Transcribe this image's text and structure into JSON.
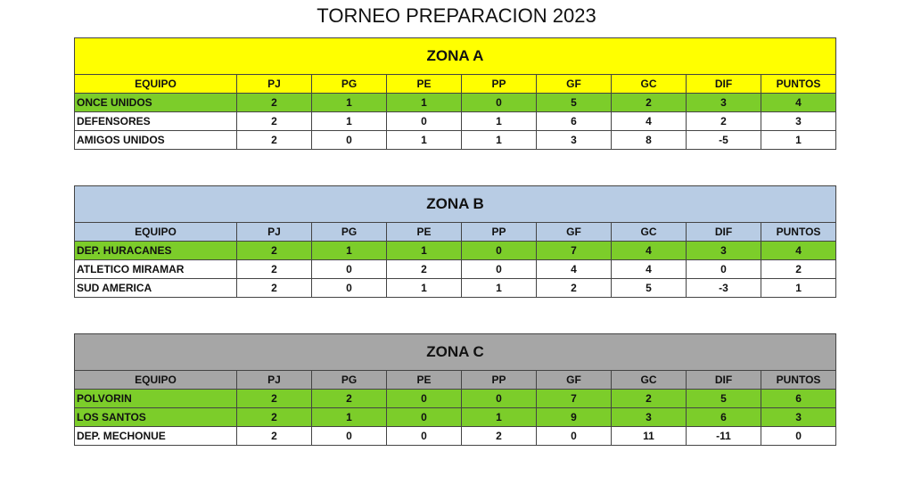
{
  "title": "TORNEO PREPARACION 2023",
  "columns": [
    "EQUIPO",
    "PJ",
    "PG",
    "PE",
    "PP",
    "GF",
    "GC",
    "DIF",
    "PUNTOS"
  ],
  "colors": {
    "zona_a": "#ffff00",
    "zona_b": "#b8cce4",
    "zona_c": "#a6a6a6",
    "highlight": "#7ccd2a"
  },
  "zones": [
    {
      "name": "ZONA A",
      "rows": [
        {
          "team": "ONCE UNIDOS",
          "v": [
            "2",
            "1",
            "1",
            "0",
            "5",
            "2",
            "3",
            "4"
          ],
          "highlight": true
        },
        {
          "team": "DEFENSORES",
          "v": [
            "2",
            "1",
            "0",
            "1",
            "6",
            "4",
            "2",
            "3"
          ],
          "highlight": false
        },
        {
          "team": "AMIGOS UNIDOS",
          "v": [
            "2",
            "0",
            "1",
            "1",
            "3",
            "8",
            "-5",
            "1"
          ],
          "highlight": false
        }
      ]
    },
    {
      "name": "ZONA B",
      "rows": [
        {
          "team": "DEP. HURACANES",
          "v": [
            "2",
            "1",
            "1",
            "0",
            "7",
            "4",
            "3",
            "4"
          ],
          "highlight": true
        },
        {
          "team": "ATLETICO MIRAMAR",
          "v": [
            "2",
            "0",
            "2",
            "0",
            "4",
            "4",
            "0",
            "2"
          ],
          "highlight": false
        },
        {
          "team": "SUD AMERICA",
          "v": [
            "2",
            "0",
            "1",
            "1",
            "2",
            "5",
            "-3",
            "1"
          ],
          "highlight": false
        }
      ]
    },
    {
      "name": "ZONA C",
      "rows": [
        {
          "team": "POLVORIN",
          "v": [
            "2",
            "2",
            "0",
            "0",
            "7",
            "2",
            "5",
            "6"
          ],
          "highlight": true
        },
        {
          "team": "LOS SANTOS",
          "v": [
            "2",
            "1",
            "0",
            "1",
            "9",
            "3",
            "6",
            "3"
          ],
          "highlight": true
        },
        {
          "team": "DEP. MECHONUE",
          "v": [
            "2",
            "0",
            "0",
            "2",
            "0",
            "11",
            "-11",
            "0"
          ],
          "highlight": false
        }
      ]
    }
  ]
}
